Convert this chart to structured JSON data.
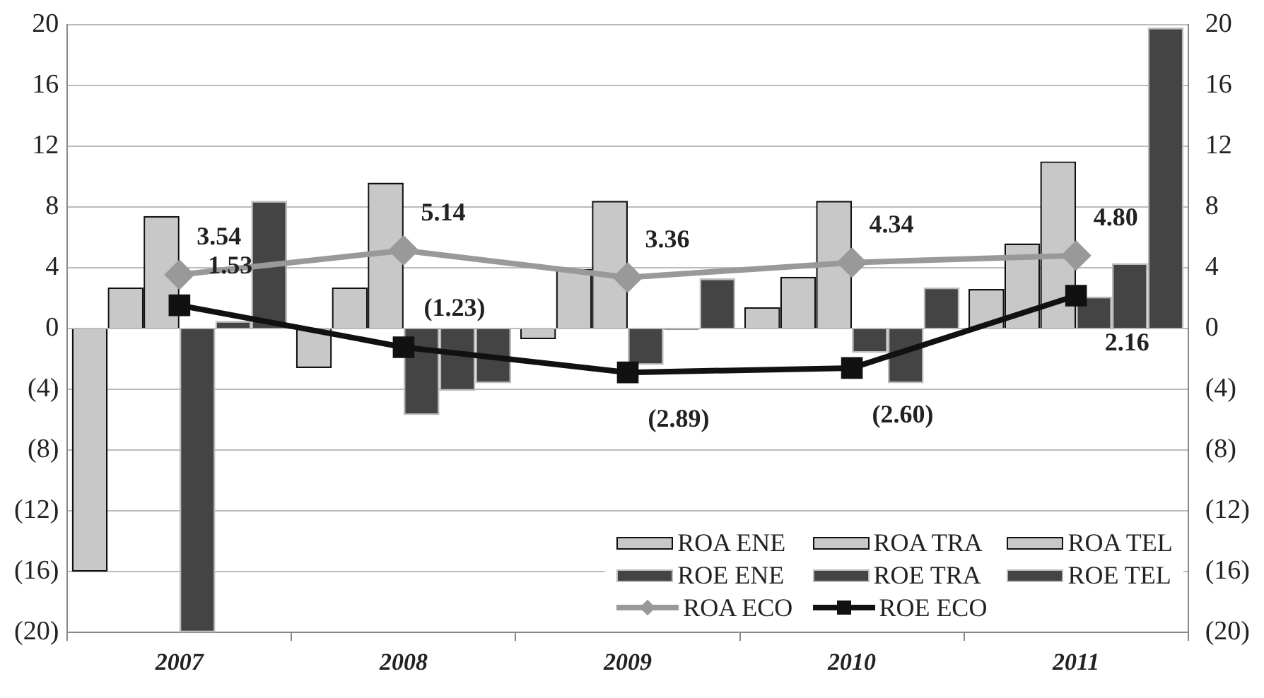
{
  "chart_data": {
    "type": "bar",
    "categories": [
      "2007",
      "2008",
      "2009",
      "2010",
      "2011"
    ],
    "series": [
      {
        "name": "ROA ENE",
        "color": "#c8c8c8",
        "values": [
          -16,
          -2.6,
          -0.7,
          1.4,
          2.6
        ]
      },
      {
        "name": "ROA TRA",
        "color": "#c8c8c8",
        "values": [
          2.7,
          2.7,
          3.9,
          3.4,
          5.6
        ]
      },
      {
        "name": "ROA TEL",
        "color": "#c8c8c8",
        "values": [
          7.4,
          9.6,
          8.4,
          8.4,
          11
        ]
      },
      {
        "name": "ROE ENE",
        "color": "#444444",
        "values": [
          -20,
          -5.7,
          -2.4,
          -1.6,
          2.1
        ]
      },
      {
        "name": "ROE TRA",
        "color": "#444444",
        "values": [
          0.5,
          -4.1,
          -0.1,
          -3.6,
          4.3
        ]
      },
      {
        "name": "ROE TEL",
        "color": "#444444",
        "values": [
          8.4,
          -3.6,
          3.3,
          2.7,
          19.8
        ]
      },
      {
        "name": "ROA ECO",
        "type": "line",
        "color": "#999999",
        "marker": "diamond",
        "values": [
          3.54,
          5.14,
          3.36,
          4.34,
          4.8
        ],
        "value_labels": [
          "3.54",
          "5.14",
          "3.36",
          "4.34",
          "4.80"
        ]
      },
      {
        "name": "ROE ECO",
        "type": "line",
        "color": "#111111",
        "marker": "square",
        "values": [
          1.53,
          -1.23,
          -2.89,
          -2.6,
          2.16
        ],
        "value_labels": [
          "1.53",
          "(1.23)",
          "(2.89)",
          "(2.60)",
          "2.16"
        ]
      }
    ],
    "ylim": [
      -20,
      20
    ],
    "yticks": [
      {
        "value": -20,
        "label": "(20)"
      },
      {
        "value": -16,
        "label": "(16)"
      },
      {
        "value": -12,
        "label": "(12)"
      },
      {
        "value": -8,
        "label": "(8)"
      },
      {
        "value": -4,
        "label": "(4)"
      },
      0,
      4,
      8,
      12,
      16,
      20
    ],
    "y2lim": [
      -20,
      20
    ],
    "y2ticks": [
      {
        "value": -20,
        "label": "(20)"
      },
      {
        "value": -16,
        "label": "(16)"
      },
      {
        "value": -12,
        "label": "(12)"
      },
      {
        "value": -8,
        "label": "(8)"
      },
      {
        "value": -4,
        "label": "(4)"
      },
      0,
      4,
      8,
      12,
      16,
      20
    ],
    "grid": "y",
    "legend": "bottom right"
  }
}
